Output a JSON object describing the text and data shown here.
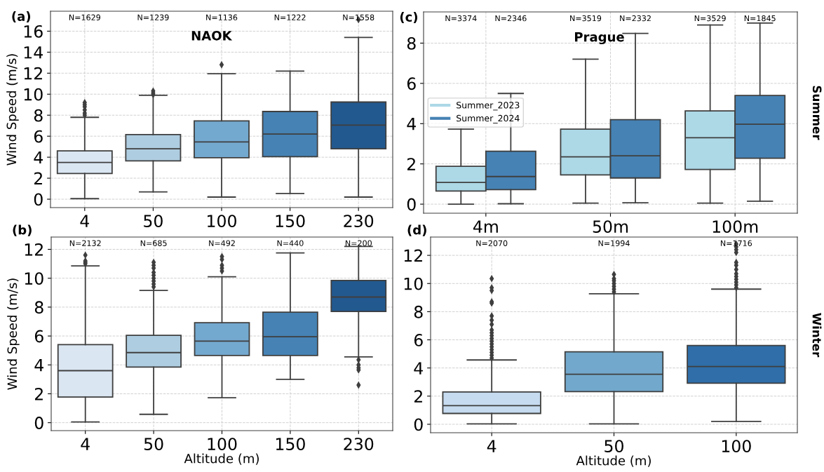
{
  "chart_data": [
    {
      "type": "box",
      "title": "(a)",
      "subtitle": "NAOK",
      "ylabel": "Wind Speed (m/s)",
      "categories": [
        "4",
        "50",
        "100",
        "150",
        "230"
      ],
      "colors": [
        "#dae6f2",
        "#afcde0",
        "#74a9cf",
        "#4682b4",
        "#22598f"
      ],
      "boxes": [
        {
          "low": 0.05,
          "q1": 2.45,
          "median": 3.5,
          "q3": 4.6,
          "high": 7.8,
          "outliers": [
            8.0,
            8.2,
            8.5,
            8.8,
            9.0,
            9.2
          ]
        },
        {
          "low": 0.7,
          "q1": 3.65,
          "median": 4.8,
          "q3": 6.15,
          "high": 9.9,
          "outliers": [
            9.95,
            10.1,
            10.3
          ]
        },
        {
          "low": 0.2,
          "q1": 3.95,
          "median": 5.45,
          "q3": 7.45,
          "high": 11.95,
          "outliers": [
            12.8
          ]
        },
        {
          "low": 0.55,
          "q1": 4.05,
          "median": 6.2,
          "q3": 8.35,
          "high": 12.2
        },
        {
          "low": 0.2,
          "q1": 4.8,
          "median": 7.05,
          "q3": 9.25,
          "high": 15.4,
          "outliers": [
            17.1
          ]
        }
      ],
      "ylim": [
        -0.8,
        17.9
      ],
      "yticks": [
        0,
        2,
        4,
        6,
        8,
        10,
        12,
        14,
        16
      ],
      "grid": true,
      "marker": "diamond",
      "annotations": [
        "N=1629",
        "N=1239",
        "N=1136",
        "N=1222",
        "N=1558"
      ]
    },
    {
      "type": "box",
      "title": "(c)",
      "subtitle": "Prague",
      "y2label": "Summer",
      "categories": [
        "4m",
        "50m",
        "100m"
      ],
      "series": [
        {
          "name": "Summer_2023",
          "color": "#add8e6",
          "boxes": [
            {
              "low": 0.0,
              "q1": 0.65,
              "median": 1.08,
              "q3": 1.88,
              "high": 3.73
            },
            {
              "low": 0.05,
              "q1": 1.45,
              "median": 2.35,
              "q3": 3.73,
              "high": 7.2
            },
            {
              "low": 0.05,
              "q1": 1.72,
              "median": 3.3,
              "q3": 4.63,
              "high": 8.9
            }
          ]
        },
        {
          "name": "Summer_2024",
          "color": "#4682b4",
          "boxes": [
            {
              "low": 0.02,
              "q1": 0.72,
              "median": 1.37,
              "q3": 2.63,
              "high": 5.5
            },
            {
              "low": 0.07,
              "q1": 1.3,
              "median": 2.4,
              "q3": 4.2,
              "high": 8.48
            },
            {
              "low": 0.15,
              "q1": 2.28,
              "median": 3.97,
              "q3": 5.4,
              "high": 9.0
            }
          ]
        }
      ],
      "ylim": [
        -0.45,
        9.55
      ],
      "yticks": [
        0,
        2,
        4,
        6,
        8
      ],
      "grid": true,
      "legend": "left",
      "annotations": [
        "N=3374",
        "N=2346",
        "N=3519",
        "N=2332",
        "N=3529",
        "N=1845"
      ]
    },
    {
      "type": "box",
      "title": "(b)",
      "xlabel": "Altitude (m)",
      "ylabel": "Wind Speed (m/s)",
      "categories": [
        "4",
        "50",
        "100",
        "150",
        "230"
      ],
      "colors": [
        "#dae6f2",
        "#afcde0",
        "#74a9cf",
        "#4682b4",
        "#22598f"
      ],
      "boxes": [
        {
          "low": 0.05,
          "q1": 1.77,
          "median": 3.6,
          "q3": 5.4,
          "high": 10.85,
          "outliers": [
            11.0,
            11.1,
            11.2,
            11.6
          ]
        },
        {
          "low": 0.58,
          "q1": 3.85,
          "median": 4.85,
          "q3": 6.05,
          "high": 9.15,
          "outliers": [
            9.4,
            9.6,
            9.8,
            10.0,
            10.2,
            10.4,
            10.7,
            10.9,
            11.1
          ]
        },
        {
          "low": 1.73,
          "q1": 4.65,
          "median": 5.65,
          "q3": 6.92,
          "high": 10.1,
          "outliers": [
            10.5,
            10.7,
            10.9,
            11.3,
            11.5
          ]
        },
        {
          "low": 3.0,
          "q1": 4.65,
          "median": 5.95,
          "q3": 7.65,
          "high": 11.75
        },
        {
          "low": 4.55,
          "q1": 7.7,
          "median": 8.7,
          "q3": 9.85,
          "high": 12.2,
          "outliers": [
            4.35,
            4.0,
            3.8,
            3.65,
            2.6
          ]
        }
      ],
      "ylim": [
        -0.55,
        12.85
      ],
      "yticks": [
        0,
        2,
        4,
        6,
        8,
        10,
        12
      ],
      "grid": true,
      "marker": "diamond",
      "annotations": [
        "N=2132",
        "N=685",
        "N=492",
        "N=440",
        "N=200"
      ]
    },
    {
      "type": "box",
      "title": "(d)",
      "xlabel": "Altitude (m)",
      "y2label": "Winter",
      "categories": [
        "4",
        "50",
        "100"
      ],
      "colors": [
        "#c6dbef",
        "#72a8cb",
        "#2f6ea8"
      ],
      "boxes": [
        {
          "low": 0.03,
          "q1": 0.77,
          "median": 1.32,
          "q3": 2.3,
          "high": 4.57,
          "outliers": [
            4.7,
            4.9,
            5.1,
            5.3,
            5.5,
            5.7,
            5.9,
            6.1,
            6.3,
            6.5,
            6.7,
            7.1,
            7.4,
            7.7,
            8.6,
            8.7,
            9.5,
            9.7,
            10.35
          ]
        },
        {
          "low": 0.03,
          "q1": 2.32,
          "median": 3.55,
          "q3": 5.15,
          "high": 9.27,
          "outliers": [
            9.4,
            9.6,
            9.8,
            10.0,
            10.2,
            10.35,
            10.65
          ]
        },
        {
          "low": 0.2,
          "q1": 2.92,
          "median": 4.1,
          "q3": 5.6,
          "high": 9.6,
          "outliers": [
            9.7,
            9.9,
            10.1,
            10.3,
            10.5,
            10.7,
            11.0,
            11.3,
            11.5,
            12.2,
            12.4,
            12.6,
            12.8
          ]
        }
      ],
      "ylim": [
        -0.6,
        13.3
      ],
      "yticks": [
        0,
        2,
        4,
        6,
        8,
        10,
        12
      ],
      "grid": true,
      "marker": "diamond",
      "annotations": [
        "N=2070",
        "N=1994",
        "N=1716"
      ]
    }
  ]
}
